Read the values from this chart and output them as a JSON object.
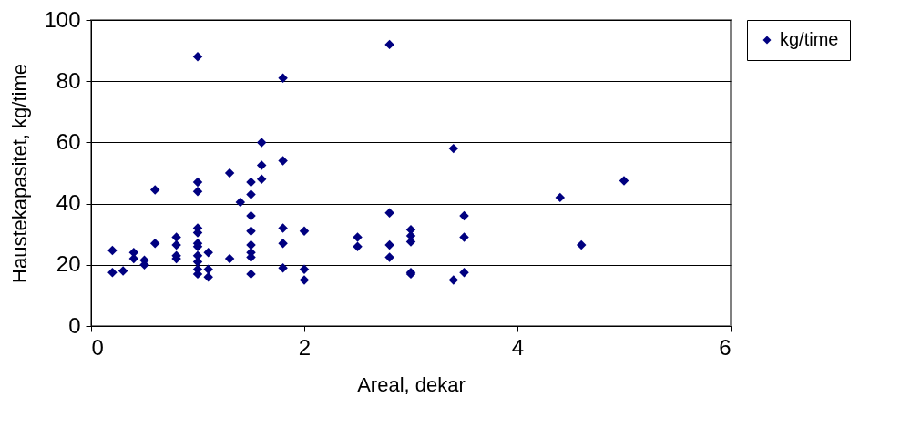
{
  "chart_data": {
    "type": "scatter",
    "xlabel": "Areal, dekar",
    "ylabel": "Haustekapasitet, kg/time",
    "x": [
      0.2,
      0.2,
      0.3,
      0.4,
      0.4,
      0.5,
      0.5,
      0.6,
      0.6,
      0.8,
      0.8,
      0.8,
      0.8,
      1,
      1,
      1,
      1,
      1,
      1,
      1,
      1,
      1,
      1,
      1,
      1.1,
      1.1,
      1.1,
      1.3,
      1.3,
      1.4,
      1.5,
      1.5,
      1.5,
      1.5,
      1.5,
      1.5,
      1.5,
      1.5,
      1.6,
      1.6,
      1.6,
      1.8,
      1.8,
      1.8,
      1.8,
      1.8,
      2,
      2,
      2,
      2.5,
      2.5,
      2.8,
      2.8,
      2.8,
      2.8,
      3,
      3,
      3,
      3,
      3,
      3.4,
      3.4,
      3.5,
      3.5,
      3.5,
      4.4,
      4.6,
      5
    ],
    "series": [
      {
        "name": "kg/time",
        "color": "#000080",
        "values": [
          24.7,
          17.5,
          18,
          24,
          22,
          21.5,
          20,
          44.5,
          27,
          29,
          26.5,
          23,
          22,
          88,
          47,
          44,
          32,
          30.5,
          27,
          26,
          23,
          21,
          18.5,
          17,
          24,
          18.5,
          16,
          50,
          22,
          40.5,
          47,
          43,
          36,
          31,
          26.5,
          24,
          22.5,
          17,
          60,
          52.5,
          48,
          81,
          54,
          32,
          27,
          19,
          31,
          18.5,
          15,
          29,
          26,
          92,
          37,
          26.5,
          22.5,
          31.5,
          29.5,
          27.5,
          17.5,
          17,
          58,
          15,
          36,
          29,
          17.5,
          42,
          26.5,
          47.5
        ]
      }
    ],
    "xlim": [
      0,
      6
    ],
    "xticks": [
      0,
      2,
      4,
      6
    ],
    "ylim": [
      0,
      100
    ],
    "yticks": [
      0,
      20,
      40,
      60,
      80,
      100
    ],
    "grid": "y",
    "legend": "right",
    "marker": "diamond"
  }
}
